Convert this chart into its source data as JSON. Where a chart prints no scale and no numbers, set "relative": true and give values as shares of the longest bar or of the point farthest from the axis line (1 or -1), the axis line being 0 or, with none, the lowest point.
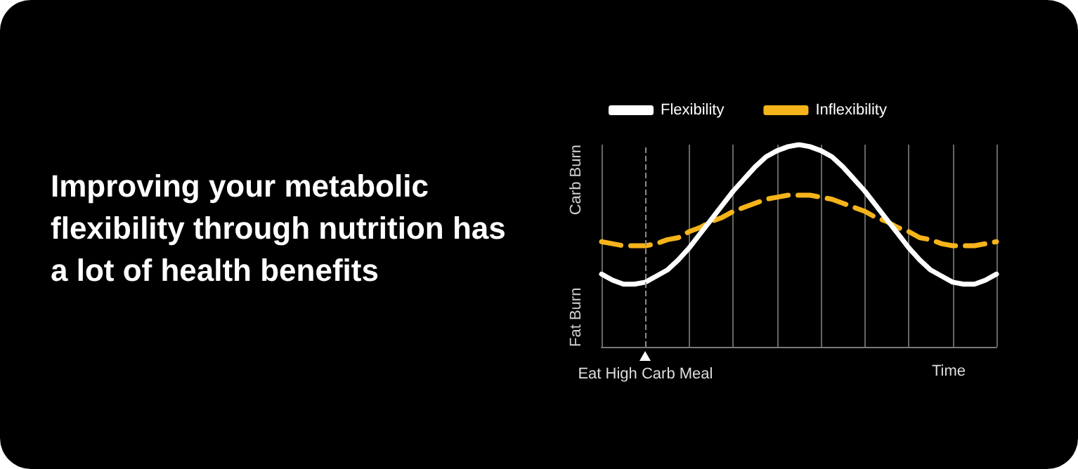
{
  "chart_data": {
    "type": "line",
    "title": "Improving your metabolic flexibility through nutrition has a lot of health benefits",
    "xlabel": "Time",
    "relative": true,
    "grid": "x",
    "legend": "top",
    "marker": "none",
    "categories": [
      null,
      null,
      null,
      null,
      null,
      null,
      null,
      null,
      null,
      null,
      null,
      null,
      null,
      null,
      null,
      null,
      null,
      null,
      null,
      null,
      null,
      null,
      null,
      null,
      null,
      null,
      null,
      null,
      null,
      null,
      null,
      null,
      null,
      null,
      null,
      null,
      null
    ],
    "series": [
      {
        "name": "Flexibility",
        "color": "#ffffff",
        "line_style": "solid",
        "values": [
          0.36,
          0.33,
          0.31,
          0.31,
          0.32,
          0.35,
          0.38,
          0.43,
          0.49,
          0.56,
          0.63,
          0.7,
          0.77,
          0.83,
          0.89,
          0.94,
          0.97,
          0.99,
          1.0,
          0.99,
          0.97,
          0.94,
          0.89,
          0.83,
          0.77,
          0.7,
          0.63,
          0.56,
          0.49,
          0.43,
          0.38,
          0.35,
          0.32,
          0.31,
          0.31,
          0.33,
          0.36
        ]
      },
      {
        "name": "Inflexibility",
        "color": "#f5b41a",
        "line_style": "dashed",
        "values": [
          0.52,
          0.51,
          0.5,
          0.5,
          0.5,
          0.51,
          0.53,
          0.54,
          0.57,
          0.59,
          0.62,
          0.64,
          0.67,
          0.69,
          0.71,
          0.73,
          0.74,
          0.75,
          0.75,
          0.75,
          0.74,
          0.73,
          0.71,
          0.69,
          0.67,
          0.64,
          0.62,
          0.59,
          0.57,
          0.54,
          0.53,
          0.51,
          0.5,
          0.5,
          0.5,
          0.51,
          0.52
        ]
      }
    ],
    "annotations": [
      "Carb Burn",
      "Fat Burn",
      "Eat High Carb Meal"
    ]
  }
}
